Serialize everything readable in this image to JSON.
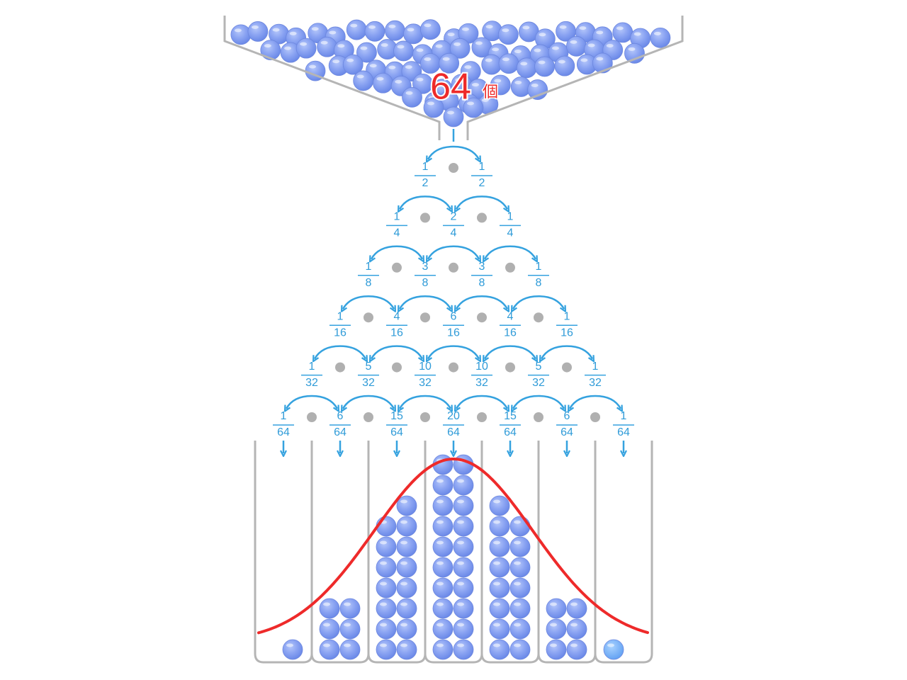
{
  "hopper": {
    "count": "64",
    "unit": "個"
  },
  "rows": [
    [
      {
        "num": 1,
        "den": 2
      },
      {
        "num": 1,
        "den": 2
      }
    ],
    [
      {
        "num": 1,
        "den": 4
      },
      {
        "num": 2,
        "den": 4
      },
      {
        "num": 1,
        "den": 4
      }
    ],
    [
      {
        "num": 1,
        "den": 8
      },
      {
        "num": 3,
        "den": 8
      },
      {
        "num": 3,
        "den": 8
      },
      {
        "num": 1,
        "den": 8
      }
    ],
    [
      {
        "num": 1,
        "den": 16
      },
      {
        "num": 4,
        "den": 16
      },
      {
        "num": 6,
        "den": 16
      },
      {
        "num": 4,
        "den": 16
      },
      {
        "num": 1,
        "den": 16
      }
    ],
    [
      {
        "num": 1,
        "den": 32
      },
      {
        "num": 5,
        "den": 32
      },
      {
        "num": 10,
        "den": 32
      },
      {
        "num": 10,
        "den": 32
      },
      {
        "num": 5,
        "den": 32
      },
      {
        "num": 1,
        "den": 32
      }
    ],
    [
      {
        "num": 1,
        "den": 64
      },
      {
        "num": 6,
        "den": 64
      },
      {
        "num": 15,
        "den": 64
      },
      {
        "num": 20,
        "den": 64
      },
      {
        "num": 15,
        "den": 64
      },
      {
        "num": 6,
        "den": 64
      },
      {
        "num": 1,
        "den": 64
      }
    ]
  ]
}
